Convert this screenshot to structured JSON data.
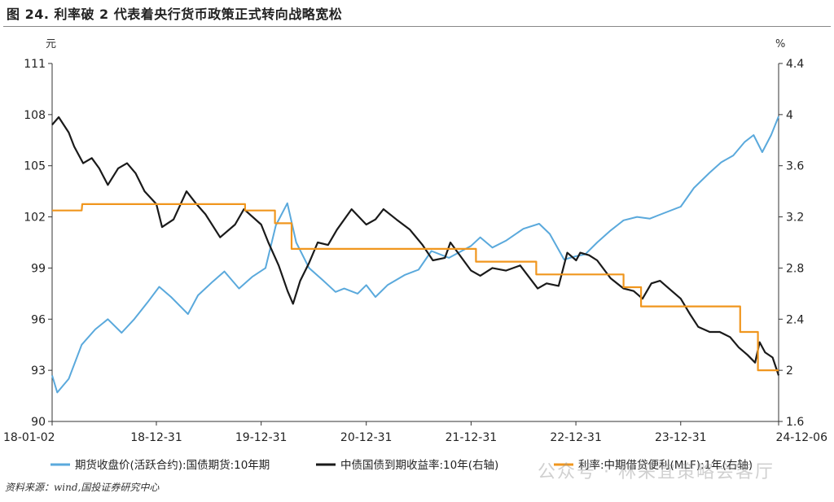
{
  "header": {
    "title": "图 24. 利率破 2 代表着央行货币政策正式转向战略宽松"
  },
  "footer": {
    "source": "资料来源：wind,国投证券研究中心"
  },
  "watermark": {
    "text": "公众号 · 林采宜策略会客厅"
  },
  "colors": {
    "futures": "#5aa9dc",
    "yield": "#1a1a1a",
    "mlf": "#f0961e",
    "axis": "#333333"
  },
  "chart_data": {
    "type": "line",
    "left_unit": "元",
    "right_unit": "%",
    "x_ticks": [
      "18-01-02",
      "18-12-31",
      "19-12-31",
      "20-12-31",
      "21-12-31",
      "22-12-31",
      "23-12-31",
      "24-12-06"
    ],
    "x_tick_dates": [
      "2018-01-02",
      "2018-12-31",
      "2019-12-31",
      "2020-12-31",
      "2021-12-31",
      "2022-12-31",
      "2023-12-31",
      "2024-12-06"
    ],
    "y_left": {
      "min": 90,
      "max": 111,
      "ticks": [
        "90",
        "93",
        "96",
        "99",
        "102",
        "105",
        "108",
        "111"
      ]
    },
    "y_right": {
      "min": 1.6,
      "max": 4.4,
      "ticks": [
        "1.6",
        "2",
        "2.4",
        "2.8",
        "3.2",
        "3.6",
        "4",
        "4.4"
      ]
    },
    "series": [
      {
        "name": "期货收盘价(活跃合约):国债期货:10年期",
        "axis": "left",
        "points": [
          [
            "2018-01-02",
            92.7
          ],
          [
            "2018-01-20",
            91.7
          ],
          [
            "2018-03-01",
            92.5
          ],
          [
            "2018-04-15",
            94.5
          ],
          [
            "2018-06-01",
            95.4
          ],
          [
            "2018-07-15",
            96.0
          ],
          [
            "2018-09-01",
            95.2
          ],
          [
            "2018-10-15",
            96.0
          ],
          [
            "2018-12-01",
            97.0
          ],
          [
            "2019-01-10",
            97.9
          ],
          [
            "2019-02-20",
            97.3
          ],
          [
            "2019-04-20",
            96.3
          ],
          [
            "2019-05-25",
            97.4
          ],
          [
            "2019-07-15",
            98.2
          ],
          [
            "2019-08-25",
            98.8
          ],
          [
            "2019-10-15",
            97.8
          ],
          [
            "2019-12-01",
            98.5
          ],
          [
            "2020-01-15",
            99.0
          ],
          [
            "2020-02-20",
            101.5
          ],
          [
            "2020-03-31",
            102.8
          ],
          [
            "2020-05-01",
            100.5
          ],
          [
            "2020-06-15",
            99.0
          ],
          [
            "2020-08-01",
            98.3
          ],
          [
            "2020-09-15",
            97.6
          ],
          [
            "2020-10-15",
            97.8
          ],
          [
            "2020-12-01",
            97.5
          ],
          [
            "2020-12-31",
            98.0
          ],
          [
            "2021-02-01",
            97.3
          ],
          [
            "2021-03-15",
            98.0
          ],
          [
            "2021-05-15",
            98.6
          ],
          [
            "2021-07-01",
            98.9
          ],
          [
            "2021-08-15",
            100.0
          ],
          [
            "2021-10-15",
            99.6
          ],
          [
            "2021-12-31",
            100.3
          ],
          [
            "2022-02-01",
            100.8
          ],
          [
            "2022-03-15",
            100.2
          ],
          [
            "2022-05-01",
            100.6
          ],
          [
            "2022-07-01",
            101.3
          ],
          [
            "2022-08-25",
            101.6
          ],
          [
            "2022-10-01",
            101.0
          ],
          [
            "2022-11-20",
            99.5
          ],
          [
            "2023-01-01",
            99.7
          ],
          [
            "2023-02-01",
            99.8
          ],
          [
            "2023-03-15",
            100.5
          ],
          [
            "2023-05-01",
            101.2
          ],
          [
            "2023-06-15",
            101.8
          ],
          [
            "2023-08-01",
            102.0
          ],
          [
            "2023-09-15",
            101.9
          ],
          [
            "2023-10-15",
            102.1
          ],
          [
            "2023-12-31",
            102.6
          ],
          [
            "2024-02-15",
            103.7
          ],
          [
            "2024-04-10",
            104.6
          ],
          [
            "2024-05-20",
            105.2
          ],
          [
            "2024-07-01",
            105.6
          ],
          [
            "2024-08-10",
            106.4
          ],
          [
            "2024-09-10",
            106.8
          ],
          [
            "2024-10-10",
            105.8
          ],
          [
            "2024-11-10",
            106.8
          ],
          [
            "2024-12-06",
            107.9
          ]
        ]
      },
      {
        "name": "中债国债到期收益率:10年(右轴)",
        "axis": "right",
        "points": [
          [
            "2018-01-02",
            3.92
          ],
          [
            "2018-01-25",
            3.98
          ],
          [
            "2018-03-01",
            3.86
          ],
          [
            "2018-03-20",
            3.75
          ],
          [
            "2018-04-20",
            3.62
          ],
          [
            "2018-05-20",
            3.66
          ],
          [
            "2018-06-15",
            3.58
          ],
          [
            "2018-07-15",
            3.45
          ],
          [
            "2018-08-20",
            3.58
          ],
          [
            "2018-09-20",
            3.62
          ],
          [
            "2018-10-20",
            3.54
          ],
          [
            "2018-11-20",
            3.4
          ],
          [
            "2018-12-31",
            3.3
          ],
          [
            "2019-01-20",
            3.12
          ],
          [
            "2019-03-01",
            3.18
          ],
          [
            "2019-04-15",
            3.4
          ],
          [
            "2019-05-20",
            3.3
          ],
          [
            "2019-06-20",
            3.22
          ],
          [
            "2019-08-10",
            3.04
          ],
          [
            "2019-10-01",
            3.14
          ],
          [
            "2019-11-01",
            3.26
          ],
          [
            "2019-12-31",
            3.14
          ],
          [
            "2020-01-25",
            3.0
          ],
          [
            "2020-03-01",
            2.82
          ],
          [
            "2020-04-01",
            2.62
          ],
          [
            "2020-04-20",
            2.52
          ],
          [
            "2020-05-15",
            2.7
          ],
          [
            "2020-06-15",
            2.84
          ],
          [
            "2020-07-15",
            3.0
          ],
          [
            "2020-08-20",
            2.98
          ],
          [
            "2020-09-20",
            3.1
          ],
          [
            "2020-11-10",
            3.26
          ],
          [
            "2020-12-31",
            3.14
          ],
          [
            "2021-02-01",
            3.18
          ],
          [
            "2021-03-01",
            3.26
          ],
          [
            "2021-04-15",
            3.18
          ],
          [
            "2021-06-01",
            3.1
          ],
          [
            "2021-07-15",
            2.98
          ],
          [
            "2021-08-20",
            2.86
          ],
          [
            "2021-10-01",
            2.88
          ],
          [
            "2021-10-20",
            3.0
          ],
          [
            "2021-12-31",
            2.78
          ],
          [
            "2022-02-01",
            2.74
          ],
          [
            "2022-03-15",
            2.8
          ],
          [
            "2022-05-01",
            2.78
          ],
          [
            "2022-06-20",
            2.82
          ],
          [
            "2022-08-20",
            2.64
          ],
          [
            "2022-09-20",
            2.68
          ],
          [
            "2022-11-01",
            2.66
          ],
          [
            "2022-12-01",
            2.92
          ],
          [
            "2023-01-01",
            2.86
          ],
          [
            "2023-01-15",
            2.92
          ],
          [
            "2023-02-15",
            2.9
          ],
          [
            "2023-03-15",
            2.86
          ],
          [
            "2023-05-01",
            2.72
          ],
          [
            "2023-06-15",
            2.64
          ],
          [
            "2023-07-20",
            2.62
          ],
          [
            "2023-08-20",
            2.56
          ],
          [
            "2023-09-20",
            2.68
          ],
          [
            "2023-10-20",
            2.7
          ],
          [
            "2023-11-20",
            2.64
          ],
          [
            "2023-12-31",
            2.56
          ],
          [
            "2024-02-01",
            2.44
          ],
          [
            "2024-03-01",
            2.34
          ],
          [
            "2024-04-10",
            2.3
          ],
          [
            "2024-05-15",
            2.3
          ],
          [
            "2024-06-20",
            2.26
          ],
          [
            "2024-07-20",
            2.18
          ],
          [
            "2024-08-20",
            2.12
          ],
          [
            "2024-09-15",
            2.06
          ],
          [
            "2024-10-01",
            2.22
          ],
          [
            "2024-10-20",
            2.14
          ],
          [
            "2024-11-15",
            2.1
          ],
          [
            "2024-12-06",
            1.96
          ]
        ]
      },
      {
        "name": "利率:中期借贷便利(MLF):1年(右轴)",
        "axis": "right",
        "points": [
          [
            "2018-01-02",
            3.25
          ],
          [
            "2018-04-15",
            3.25
          ],
          [
            "2018-04-17",
            3.3
          ],
          [
            "2019-11-05",
            3.3
          ],
          [
            "2019-11-05",
            3.25
          ],
          [
            "2020-02-17",
            3.25
          ],
          [
            "2020-02-17",
            3.15
          ],
          [
            "2020-04-15",
            3.15
          ],
          [
            "2020-04-15",
            2.95
          ],
          [
            "2022-01-17",
            2.95
          ],
          [
            "2022-01-17",
            2.85
          ],
          [
            "2022-08-15",
            2.85
          ],
          [
            "2022-08-15",
            2.75
          ],
          [
            "2023-06-15",
            2.75
          ],
          [
            "2023-06-15",
            2.65
          ],
          [
            "2023-08-15",
            2.65
          ],
          [
            "2023-08-15",
            2.5
          ],
          [
            "2024-07-25",
            2.5
          ],
          [
            "2024-07-25",
            2.3
          ],
          [
            "2024-09-25",
            2.3
          ],
          [
            "2024-09-25",
            2.0
          ],
          [
            "2024-12-06",
            2.0
          ]
        ]
      }
    ]
  }
}
